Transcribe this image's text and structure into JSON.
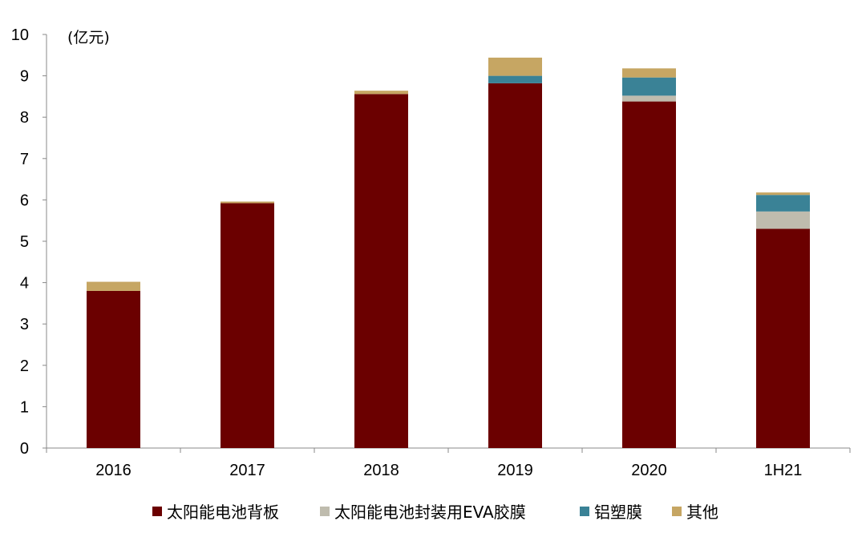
{
  "chart_data": {
    "type": "bar",
    "stacked": true,
    "unit_label": "(亿元)",
    "title": "",
    "xlabel": "",
    "ylabel": "",
    "ylim": [
      0,
      10
    ],
    "yticks": [
      0,
      1,
      2,
      3,
      4,
      5,
      6,
      7,
      8,
      9,
      10
    ],
    "grid": false,
    "legend_position": "bottom",
    "categories": [
      "2016",
      "2017",
      "2018",
      "2019",
      "2020",
      "1H21"
    ],
    "series": [
      {
        "name": "太阳能电池背板",
        "color": "#6B0000",
        "values": [
          3.8,
          5.92,
          8.56,
          8.82,
          8.38,
          5.3
        ]
      },
      {
        "name": "太阳能电池封装用EVA胶膜",
        "color": "#BFBCAE",
        "values": [
          0.0,
          0.0,
          0.0,
          0.0,
          0.14,
          0.42
        ]
      },
      {
        "name": "铝塑膜",
        "color": "#3A8296",
        "values": [
          0.0,
          0.0,
          0.0,
          0.18,
          0.44,
          0.4
        ]
      },
      {
        "name": "其他",
        "color": "#C6A663",
        "values": [
          0.22,
          0.04,
          0.08,
          0.44,
          0.22,
          0.06
        ]
      }
    ]
  }
}
